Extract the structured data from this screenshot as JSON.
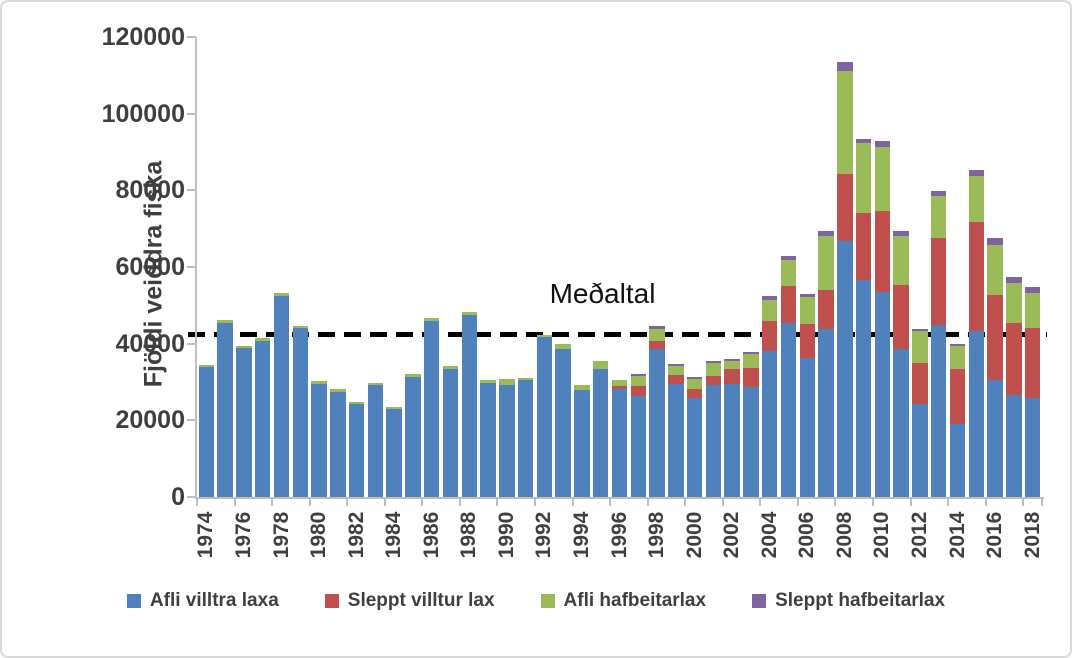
{
  "chart_data": {
    "type": "bar",
    "stacked": true,
    "title": "",
    "xlabel": "",
    "ylabel": "Fjöldi veiddra fiska",
    "ylim": [
      0,
      120000
    ],
    "ytick_step": 20000,
    "ytick_labels": [
      "0",
      "20000",
      "40000",
      "60000",
      "80000",
      "100000",
      "120000"
    ],
    "grid": false,
    "legend_position": "bottom",
    "categories": [
      1974,
      1975,
      1976,
      1977,
      1978,
      1979,
      1980,
      1981,
      1982,
      1983,
      1984,
      1985,
      1986,
      1987,
      1988,
      1989,
      1990,
      1991,
      1992,
      1993,
      1994,
      1995,
      1996,
      1997,
      1998,
      1999,
      2000,
      2001,
      2002,
      2003,
      2004,
      2005,
      2006,
      2007,
      2008,
      2009,
      2010,
      2011,
      2012,
      2013,
      2014,
      2015,
      2016,
      2017,
      2018
    ],
    "xtick_labels": [
      "1974",
      "1976",
      "1978",
      "1980",
      "1982",
      "1984",
      "1986",
      "1988",
      "1990",
      "1992",
      "1994",
      "1996",
      "1998",
      "2000",
      "2002",
      "2004",
      "2006",
      "2008",
      "2010",
      "2012",
      "2014",
      "2016",
      "2018"
    ],
    "series": [
      {
        "name": "Afli villtra laxa",
        "color": "#4F81BD",
        "values": [
          33900,
          45300,
          38900,
          40700,
          52400,
          44000,
          29600,
          27400,
          24200,
          29100,
          22900,
          31400,
          45900,
          33400,
          47400,
          29800,
          29100,
          30600,
          41700,
          38500,
          27800,
          33500,
          28300,
          26400,
          38500,
          29600,
          25900,
          29200,
          29600,
          28700,
          38000,
          45400,
          36300,
          43800,
          66700,
          56500,
          53500,
          38700,
          24200,
          44800,
          19100,
          43400,
          30400,
          26500,
          25900
        ]
      },
      {
        "name": "Sleppt villtur lax",
        "color": "#C0504D",
        "values": [
          0,
          0,
          0,
          0,
          0,
          0,
          0,
          0,
          0,
          0,
          0,
          0,
          0,
          0,
          0,
          0,
          0,
          0,
          0,
          0,
          0,
          0,
          600,
          2600,
          2200,
          2300,
          2300,
          2400,
          3700,
          5000,
          7900,
          9700,
          8700,
          10200,
          17600,
          17600,
          21200,
          16500,
          10800,
          22700,
          14200,
          28400,
          22400,
          18900,
          18100
        ]
      },
      {
        "name": "Afli hafbeitarlax",
        "color": "#9BBB59",
        "values": [
          600,
          800,
          600,
          800,
          700,
          700,
          700,
          700,
          600,
          700,
          600,
          800,
          700,
          700,
          800,
          600,
          1800,
          500,
          500,
          1300,
          1300,
          2100,
          1500,
          2600,
          3200,
          2300,
          2600,
          3300,
          2100,
          3600,
          5400,
          6800,
          7100,
          14200,
          26900,
          18200,
          16500,
          13000,
          8400,
          11100,
          6100,
          11900,
          12900,
          10400,
          9200
        ]
      },
      {
        "name": "Sleppt hafbeitarlax",
        "color": "#8064A2",
        "values": [
          0,
          0,
          0,
          0,
          0,
          0,
          0,
          0,
          0,
          0,
          0,
          0,
          0,
          0,
          0,
          0,
          0,
          0,
          0,
          0,
          0,
          0,
          0,
          500,
          700,
          500,
          500,
          550,
          550,
          550,
          1100,
          1000,
          900,
          1100,
          2400,
          1000,
          1600,
          1100,
          550,
          1300,
          600,
          1700,
          1900,
          1700,
          1500
        ]
      }
    ],
    "average_line": {
      "label": "Meðaltal",
      "value": 42500,
      "color": "#000000",
      "style": "dashed"
    },
    "axis_color": "#BFBFBF",
    "text_color": "#3F3F3F"
  }
}
